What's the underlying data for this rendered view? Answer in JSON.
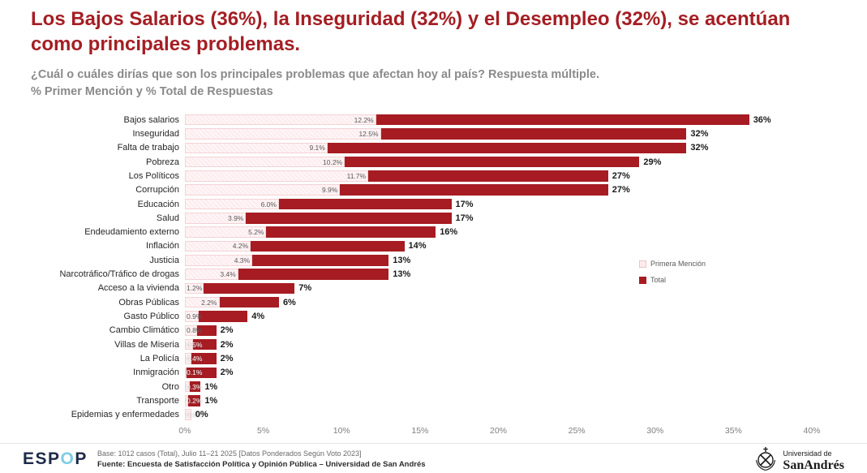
{
  "title": "Los Bajos Salarios (36%), la Inseguridad (32%) y el Desempleo (32%), se acentúan como principales problemas.",
  "subtitle1": "¿Cuál o cuáles dirías que son los principales problemas que afectan hoy al país? Respuesta múltiple.",
  "subtitle2": "% Primer Mención y % Total de Respuestas",
  "colors": {
    "title_red": "#a41e23",
    "bar_total": "#a61c22",
    "bar_primera": "#fdecee",
    "subtitle_gray": "#8a8a8a",
    "espop_accent_blue": "#7ecbe4"
  },
  "chart_data": {
    "type": "bar",
    "orientation": "horizontal",
    "title": "Los Bajos Salarios (36%), la Inseguridad (32%) y el Desempleo (32%), se acentúan como principales problemas.",
    "xlabel": "",
    "ylabel": "",
    "xlim": [
      0,
      40
    ],
    "grid": false,
    "legend_position": "right-middle",
    "categories": [
      "Bajos salarios",
      "Inseguridad",
      "Falta de trabajo",
      "Pobreza",
      "Los Políticos",
      "Corrupción",
      "Educación",
      "Salud",
      "Endeudamiento externo",
      "Inflación",
      "Justicia",
      "Narcotráfico/Tráfico de drogas",
      "Acceso a la vivienda",
      "Obras Públicas",
      "Gasto Público",
      "Cambio Climático",
      "Villas de Miseria",
      "La Policía",
      "Inmigración",
      "Otro",
      "Transporte",
      "Epidemias y enfermedades"
    ],
    "series": [
      {
        "name": "Primera Mención",
        "values": [
          12.2,
          12.5,
          9.1,
          10.2,
          11.7,
          9.9,
          6.0,
          3.9,
          5.2,
          4.2,
          4.3,
          3.4,
          1.2,
          2.2,
          0.9,
          0.8,
          0.5,
          0.4,
          0.1,
          0.3,
          0.2,
          0.4
        ],
        "labels": [
          "12.2%",
          "12.5%",
          "9.1%",
          "10.2%",
          "11.7%",
          "9.9%",
          "6.0%",
          "3.9%",
          "5.2%",
          "4.2%",
          "4.3%",
          "3.4%",
          "1.2%",
          "2.2%",
          "0.9%",
          "0.8%",
          "0.5%",
          "0.4%",
          "0.1%",
          "0.3%",
          "0.2%",
          "0.4%"
        ]
      },
      {
        "name": "Total",
        "values": [
          36,
          32,
          32,
          29,
          27,
          27,
          17,
          17,
          16,
          14,
          13,
          13,
          7,
          6,
          4,
          2,
          2,
          2,
          2,
          1,
          1,
          0
        ],
        "labels": [
          "36%",
          "32%",
          "32%",
          "29%",
          "27%",
          "27%",
          "17%",
          "17%",
          "16%",
          "14%",
          "13%",
          "13%",
          "7%",
          "6%",
          "4%",
          "2%",
          "2%",
          "2%",
          "2%",
          "1%",
          "1%",
          "0%"
        ]
      }
    ],
    "x_ticks": [
      "0%",
      "5%",
      "10%",
      "15%",
      "20%",
      "25%",
      "30%",
      "35%",
      "40%"
    ]
  },
  "legend": {
    "primera": "Primera Mención",
    "total": "Total"
  },
  "footer": {
    "logo": {
      "part1": "ESP",
      "accent": "O",
      "part2": "P"
    },
    "base": "Base: 1012 casos (Total), Julio 11–21 2025 [Datos Ponderados Según Voto 2023]",
    "fuente": "Fuente: Encuesta de Satisfacción Política y Opinión Pública – Universidad de San Andrés",
    "university": {
      "line1": "Universidad de",
      "line2": "SanAndrés"
    }
  }
}
